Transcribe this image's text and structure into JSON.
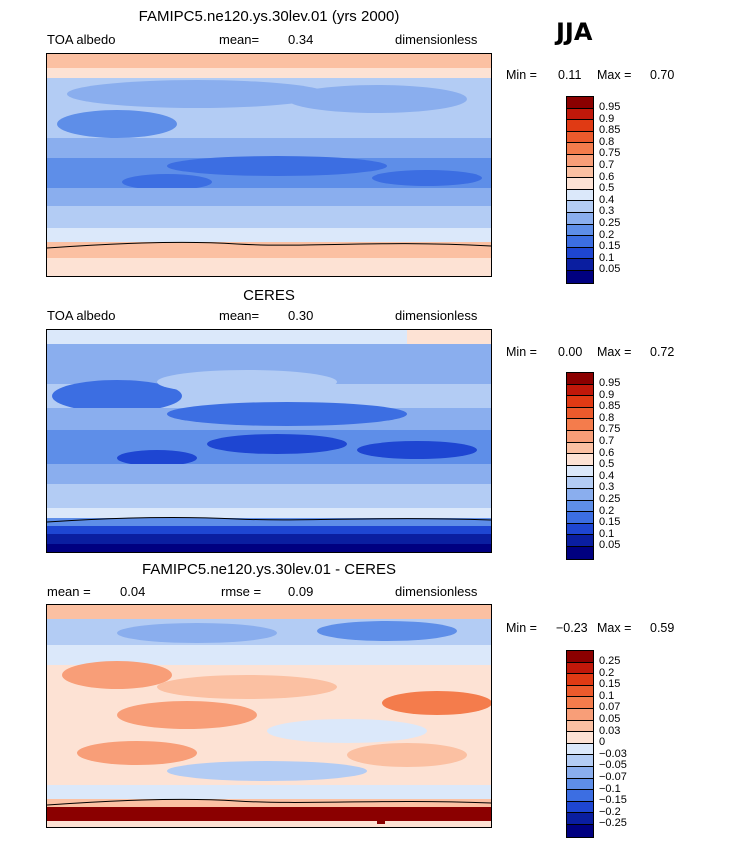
{
  "season": "JJA",
  "panels": [
    {
      "title": "FAMIPC5.ne120.ys.30lev.01 (yrs 2000)",
      "left": "TOA albedo",
      "mid_label": "mean=",
      "mid_value": "0.34",
      "right": "dimensionless",
      "min_label": "Min =",
      "min_value": "0.11",
      "max_label": "Max =",
      "max_value": "0.70",
      "colorbar": {
        "labels": [
          "0.95",
          "0.9",
          "0.85",
          "0.8",
          "0.75",
          "0.7",
          "0.6",
          "0.5",
          "0.4",
          "0.3",
          "0.25",
          "0.2",
          "0.15",
          "0.1",
          "0.05"
        ],
        "colors": [
          "#8b0000",
          "#c0180a",
          "#e03a14",
          "#ec5a2c",
          "#f47c4c",
          "#f89e78",
          "#fbc0a2",
          "#fde2d4",
          "#dbe8fa",
          "#b3ccf4",
          "#8aaeee",
          "#5e8ee8",
          "#3c6ee2",
          "#1e46d2",
          "#0a1ea0",
          "#000080"
        ]
      },
      "chart_data": {
        "type": "heatmap",
        "title": "FAMIPC5.ne120.ys.30lev.01 (yrs 2000)",
        "variable": "TOA albedo",
        "units": "dimensionless",
        "mean": 0.34,
        "min": 0.11,
        "max": 0.7,
        "levels": [
          0.05,
          0.1,
          0.15,
          0.2,
          0.25,
          0.3,
          0.4,
          0.5,
          0.6,
          0.7,
          0.75,
          0.8,
          0.85,
          0.9,
          0.95
        ]
      }
    },
    {
      "title": "CERES",
      "left": "TOA albedo",
      "mid_label": "mean=",
      "mid_value": "0.30",
      "right": "dimensionless",
      "min_label": "Min =",
      "min_value": "0.00",
      "max_label": "Max =",
      "max_value": "0.72",
      "colorbar": {
        "labels": [
          "0.95",
          "0.9",
          "0.85",
          "0.8",
          "0.75",
          "0.7",
          "0.6",
          "0.5",
          "0.4",
          "0.3",
          "0.25",
          "0.2",
          "0.15",
          "0.1",
          "0.05"
        ],
        "colors": [
          "#8b0000",
          "#c0180a",
          "#e03a14",
          "#ec5a2c",
          "#f47c4c",
          "#f89e78",
          "#fbc0a2",
          "#fde2d4",
          "#dbe8fa",
          "#b3ccf4",
          "#8aaeee",
          "#5e8ee8",
          "#3c6ee2",
          "#1e46d2",
          "#0a1ea0",
          "#000080"
        ]
      },
      "chart_data": {
        "type": "heatmap",
        "title": "CERES",
        "variable": "TOA albedo",
        "units": "dimensionless",
        "mean": 0.3,
        "min": 0.0,
        "max": 0.72,
        "levels": [
          0.05,
          0.1,
          0.15,
          0.2,
          0.25,
          0.3,
          0.4,
          0.5,
          0.6,
          0.7,
          0.75,
          0.8,
          0.85,
          0.9,
          0.95
        ]
      }
    },
    {
      "title": "FAMIPC5.ne120.ys.30lev.01 - CERES",
      "left_label": "mean =",
      "left_value": "0.04",
      "mid_label": "rmse =",
      "mid_value": "0.09",
      "right": "dimensionless",
      "min_label": "Min =",
      "min_value": "−0.23",
      "max_label": "Max =",
      "max_value": "0.59",
      "colorbar": {
        "labels": [
          "0.25",
          "0.2",
          "0.15",
          "0.1",
          "0.07",
          "0.05",
          "0.03",
          "0",
          "−0.03",
          "−0.05",
          "−0.07",
          "−0.1",
          "−0.15",
          "−0.2",
          "−0.25"
        ],
        "colors": [
          "#8b0000",
          "#c0180a",
          "#e03a14",
          "#ec5a2c",
          "#f47c4c",
          "#f89e78",
          "#fbc0a2",
          "#fde2d4",
          "#dbe8fa",
          "#b3ccf4",
          "#8aaeee",
          "#5e8ee8",
          "#3c6ee2",
          "#1e46d2",
          "#0a1ea0",
          "#000080"
        ]
      },
      "chart_data": {
        "type": "heatmap",
        "title": "FAMIPC5.ne120.ys.30lev.01 - CERES",
        "units": "dimensionless",
        "mean": 0.04,
        "rmse": 0.09,
        "min": -0.23,
        "max": 0.59,
        "levels": [
          -0.25,
          -0.2,
          -0.15,
          -0.1,
          -0.07,
          -0.05,
          -0.03,
          0,
          0.03,
          0.05,
          0.07,
          0.1,
          0.15,
          0.2,
          0.25
        ]
      }
    }
  ]
}
